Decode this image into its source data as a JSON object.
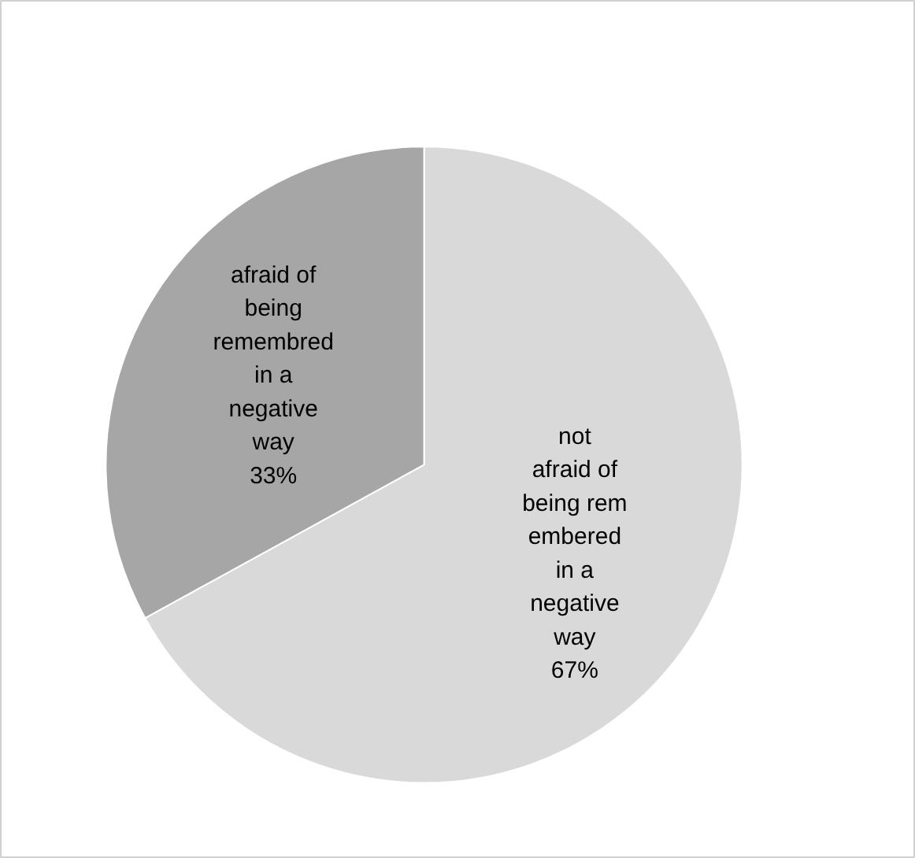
{
  "chart_data": {
    "type": "pie",
    "categories": [
      "not afraid of being remembered in a negative way",
      "afraid of being remembred in a negative way"
    ],
    "values": [
      67,
      33
    ],
    "colors": [
      "#d9d9d9",
      "#a6a6a6"
    ],
    "value_labels": [
      "67%",
      "33%"
    ]
  }
}
